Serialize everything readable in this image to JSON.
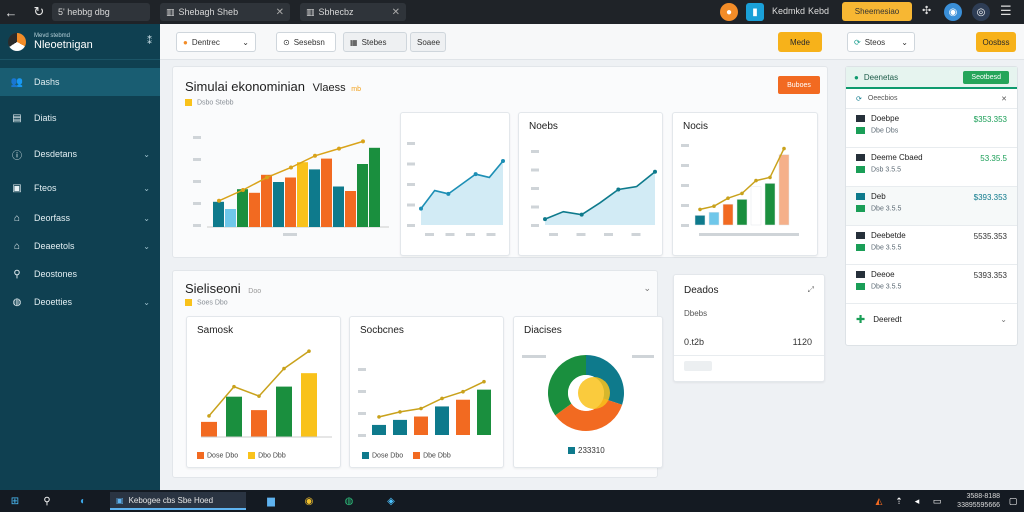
{
  "browser": {
    "tab1": "5' hebbg dbg",
    "tab2": "Shebagh Sheb",
    "tab3": "Sbhecbz",
    "right_text": "Kedmkd",
    "right_text2": "Kebd",
    "yellow_btn": "Sheemesiao"
  },
  "sidebar": {
    "brand_top": "Mevd stebmd",
    "brand_name": "Nleoetnigan",
    "items": [
      {
        "label": "Dashs",
        "icon": "people-icon"
      },
      {
        "label": "Diatis",
        "icon": "list-icon"
      },
      {
        "label": "Desdetans",
        "icon": "info-icon"
      },
      {
        "label": "Fteos",
        "icon": "document-icon"
      },
      {
        "label": "Deorfass",
        "icon": "network-icon"
      },
      {
        "label": "Deaeetols",
        "icon": "home-icon"
      },
      {
        "label": "Deostones",
        "icon": "link-icon"
      },
      {
        "label": "Deoetties",
        "icon": "globe-icon"
      }
    ]
  },
  "toolbar": {
    "select1": "Dentrec",
    "btn2": "Sesebsn",
    "btn3": "Stebes",
    "btn4": "Soaee",
    "orange": "Mede",
    "select_right": "Steos",
    "orange_right": "Oosbss"
  },
  "top_panel": {
    "title": "Simulai ekonominian",
    "title_suffix": "Vlaess",
    "small": "mb",
    "legend": "Dsbo Stebb",
    "button": "Buboes"
  },
  "cards_top": [
    {
      "title": "",
      "xlabel": "Dssts"
    },
    {
      "title": "",
      "xlabels": [
        "Dbo",
        "Dbo",
        "Dbo",
        "Dbo"
      ]
    },
    {
      "title": "Noebs",
      "xlabels": [
        "Dbo",
        "Dte",
        "Dbo",
        "Dbo"
      ]
    },
    {
      "title": "Nocis",
      "xlabels": [
        "Des",
        "Dbs-Dbo",
        "Dbo"
      ]
    }
  ],
  "bottom_panel": {
    "title": "Sieliseoni",
    "title_suffix": "Doo",
    "legend": "Soes Dbo"
  },
  "cards_bottom": [
    {
      "title": "Samosk",
      "legend1": "Dose Dbo",
      "legend2": "Dbo Dbb"
    },
    {
      "title": "Socbcnes",
      "legend1": "Dose Dbo",
      "legend2": "Dbe Dbb"
    },
    {
      "title": "Diacises",
      "legend": "233310"
    }
  ],
  "stat_card": {
    "title": "Deados",
    "sub": "Dbebs",
    "v1": "0.t2b",
    "v2": "1120"
  },
  "right_panel": {
    "header": "Deenetas",
    "header_btn": "Seotbesd",
    "sub": "Oeecbios",
    "rows": [
      {
        "name": "Doebpe",
        "sub": "Dbe Dbs",
        "amt": "$353.353",
        "color": "#1a9e57"
      },
      {
        "name": "Deeme Cbaed",
        "sub": "Dsb 3.5.5",
        "amt": "53.35.5",
        "color": "#1a9e57"
      },
      {
        "name": "Deb",
        "sub": "Dbe 3.5.5",
        "amt": "$393.353",
        "color": "#1a9e57"
      },
      {
        "name": "Deebetde",
        "sub": "Dbe 3.5.5",
        "amt": "5535.353",
        "color": "#1a9e57"
      },
      {
        "name": "Deeoe",
        "sub": "Dbe 3.5.5",
        "amt": "5393.353",
        "color": "#1a9e57"
      }
    ],
    "footer": "Deeredt"
  },
  "taskbar": {
    "app": "Kebogee cbs Sbe Hoed",
    "clock_time": "3588-8188",
    "clock_date": "33895595666"
  },
  "colors": {
    "teal": "#0e7a8c",
    "orange": "#f26a21",
    "green": "#1a8f3e",
    "yellow": "#f9c21b",
    "sky": "#6fc7ea",
    "sidebar": "#0f4051"
  },
  "chart_data": [
    {
      "type": "bar",
      "note": "combo bar + line",
      "categories": [
        "1",
        "2",
        "3",
        "4",
        "5",
        "6",
        "7"
      ],
      "series": [
        {
          "values": [
            28,
            42,
            58,
            55,
            64,
            45,
            70
          ]
        },
        {
          "values": [
            20,
            38,
            50,
            72,
            76,
            40,
            88
          ]
        },
        {
          "values": [
            18,
            30,
            44,
            55,
            68,
            76,
            84
          ]
        }
      ]
    },
    {
      "type": "area",
      "x": [
        1,
        2,
        3,
        4,
        5,
        6,
        7
      ],
      "values": [
        20,
        42,
        38,
        50,
        62,
        58,
        78
      ]
    },
    {
      "type": "area",
      "x": [
        1,
        2,
        3,
        4,
        5,
        6,
        7
      ],
      "values": [
        8,
        18,
        14,
        30,
        48,
        52,
        72
      ]
    },
    {
      "type": "bar",
      "categories": [
        "1",
        "2",
        "3",
        "4",
        "5",
        "6",
        "7"
      ],
      "values": [
        12,
        16,
        26,
        32,
        48,
        52,
        88
      ]
    },
    {
      "type": "bar",
      "categories": [
        "1",
        "2",
        "3",
        "4",
        "5"
      ],
      "values": [
        18,
        48,
        32,
        60,
        76
      ]
    },
    {
      "type": "bar",
      "categories": [
        "1",
        "2",
        "3",
        "4",
        "5",
        "6"
      ],
      "values": [
        12,
        18,
        22,
        34,
        42,
        54
      ]
    },
    {
      "type": "pie",
      "values": [
        30,
        35,
        35
      ]
    }
  ]
}
